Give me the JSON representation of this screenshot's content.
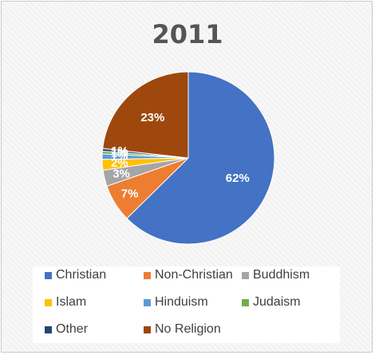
{
  "chart_data": {
    "type": "pie",
    "title": "2011",
    "slices": [
      {
        "label": "Christian",
        "value": 62,
        "display": "62%",
        "color": "#4472C4"
      },
      {
        "label": "Non-Christian",
        "value": 7,
        "display": "7%",
        "color": "#ED7D31"
      },
      {
        "label": "Buddhism",
        "value": 3,
        "display": "3%",
        "color": "#A5A5A5"
      },
      {
        "label": "Islam",
        "value": 2,
        "display": "2%",
        "color": "#FFC000"
      },
      {
        "label": "Hinduism",
        "value": 1,
        "display": "1%",
        "color": "#5B9BD5"
      },
      {
        "label": "Judaism",
        "value": 0.5,
        "display": "1%",
        "color": "#70AD47"
      },
      {
        "label": "Other",
        "value": 0.5,
        "display": "1%",
        "color": "#264478"
      },
      {
        "label": "No Religion",
        "value": 23,
        "display": "23%",
        "color": "#9E480E"
      }
    ],
    "legend_position": "bottom",
    "label_color": "#ffffff"
  }
}
